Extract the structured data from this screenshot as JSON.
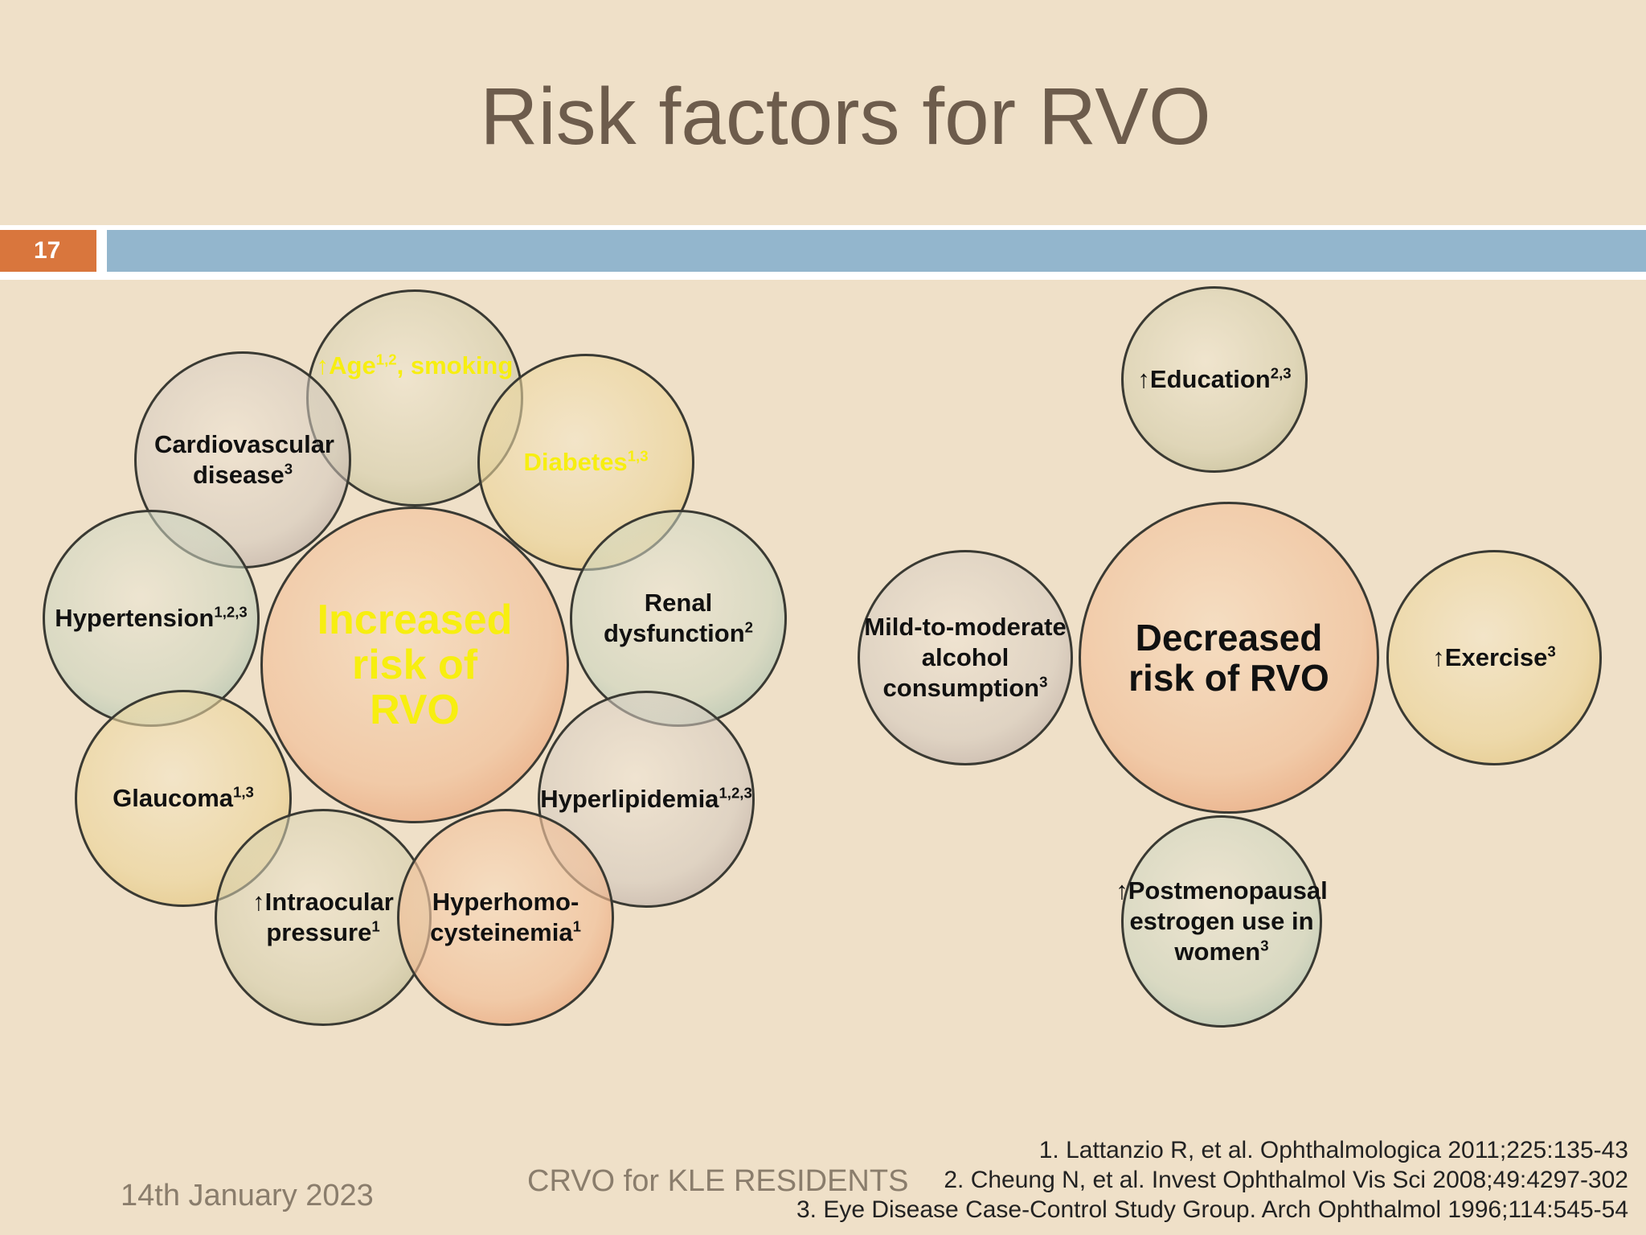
{
  "title": "Risk factors for RVO",
  "slide_number": "17",
  "colors": {
    "background": "#efe0c8",
    "accent_orange": "#d9763d",
    "accent_blue": "#93b6cd",
    "title_color": "#6d5c4c",
    "highlight_yellow": "#f7ee10"
  },
  "increased": {
    "center": "Increased risk of RVO",
    "factors": {
      "age": {
        "text": "↑Age",
        "sup": "1,2",
        "text2": ", smoking"
      },
      "cardio": {
        "text": "Cardiovascular disease",
        "sup": "3"
      },
      "diabetes": {
        "text": "Diabetes",
        "sup": "1,3"
      },
      "hypertension": {
        "text": "Hypertension",
        "sup": "1,2,3"
      },
      "renal": {
        "text": "Renal dysfunction",
        "sup": "2"
      },
      "glaucoma": {
        "text": "Glaucoma",
        "sup": "1,3"
      },
      "hyperlipidemia": {
        "text": "Hyperlipidemia",
        "sup": "1,2,3"
      },
      "iop": {
        "text": "↑Intraocular pressure",
        "sup": "1"
      },
      "hyperhomo": {
        "text": "Hyperhomo-cysteinemia",
        "sup": "1"
      }
    }
  },
  "decreased": {
    "center": "Decreased risk of RVO",
    "factors": {
      "education": {
        "text": "↑Education",
        "sup": "2,3"
      },
      "alcohol": {
        "text": "Mild-to-moderate alcohol consumption",
        "sup": "3"
      },
      "exercise": {
        "text": "↑Exercise",
        "sup": "3"
      },
      "estrogen": {
        "text": "↑Postmenopausal estrogen use in women",
        "sup": "3"
      }
    }
  },
  "footer": {
    "date": "14th January 2023",
    "presentation": "CRVO for KLE RESIDENTS"
  },
  "references": [
    "1.   Lattanzio R, et al. Ophthalmologica 2011;225:135-43",
    "2.   Cheung N, et al. Invest Ophthalmol Vis Sci 2008;49:4297-302",
    "3.   Eye Disease Case-Control Study Group. Arch Ophthalmol 1996;114:545-54"
  ]
}
